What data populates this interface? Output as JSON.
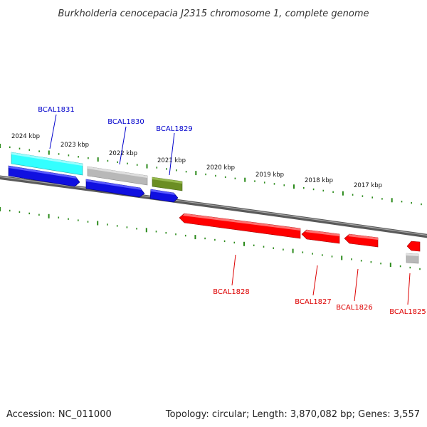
{
  "title": "Burkholderia cenocepacia J2315 chromosome 1, complete genome",
  "footer": {
    "accession": "Accession: NC_011000",
    "summary": "Topology: circular; Length: 3,870,082 bp; Genes: 3,557"
  },
  "colors": {
    "forward_label": "#0000cc",
    "reverse_label": "#dd0000",
    "tick": "#2a8a1a",
    "backbone": "#808080"
  },
  "scale": {
    "unit": "kbp",
    "labels": [
      {
        "kbp": 2024,
        "text": "2024 kbp"
      },
      {
        "kbp": 2023,
        "text": "2023 kbp"
      },
      {
        "kbp": 2022,
        "text": "2022 kbp"
      },
      {
        "kbp": 2021,
        "text": "2021 kbp"
      },
      {
        "kbp": 2020,
        "text": "2020 kbp"
      },
      {
        "kbp": 2019,
        "text": "2019 kbp"
      },
      {
        "kbp": 2018,
        "text": "2018 kbp"
      },
      {
        "kbp": 2017,
        "text": "2017 kbp"
      }
    ]
  },
  "genes": [
    {
      "name": "BCAL1831",
      "strand": "forward",
      "cds_color": "#1010e0",
      "feature_color": "#33ffff"
    },
    {
      "name": "BCAL1830",
      "strand": "forward",
      "cds_color": "#1010e0",
      "feature_color": "#b8b8b8"
    },
    {
      "name": "BCAL1829",
      "strand": "forward",
      "cds_color": "#1010e0",
      "feature_color": "#6b8e23"
    },
    {
      "name": "BCAL1828",
      "strand": "reverse",
      "cds_color": "#ff0000"
    },
    {
      "name": "BCAL1827",
      "strand": "reverse",
      "cds_color": "#ff0000"
    },
    {
      "name": "BCAL1826",
      "strand": "reverse",
      "cds_color": "#ff0000"
    },
    {
      "name": "BCAL1825",
      "strand": "reverse",
      "cds_color": "#ff0000",
      "feature_color": "#b8b8b8"
    }
  ]
}
